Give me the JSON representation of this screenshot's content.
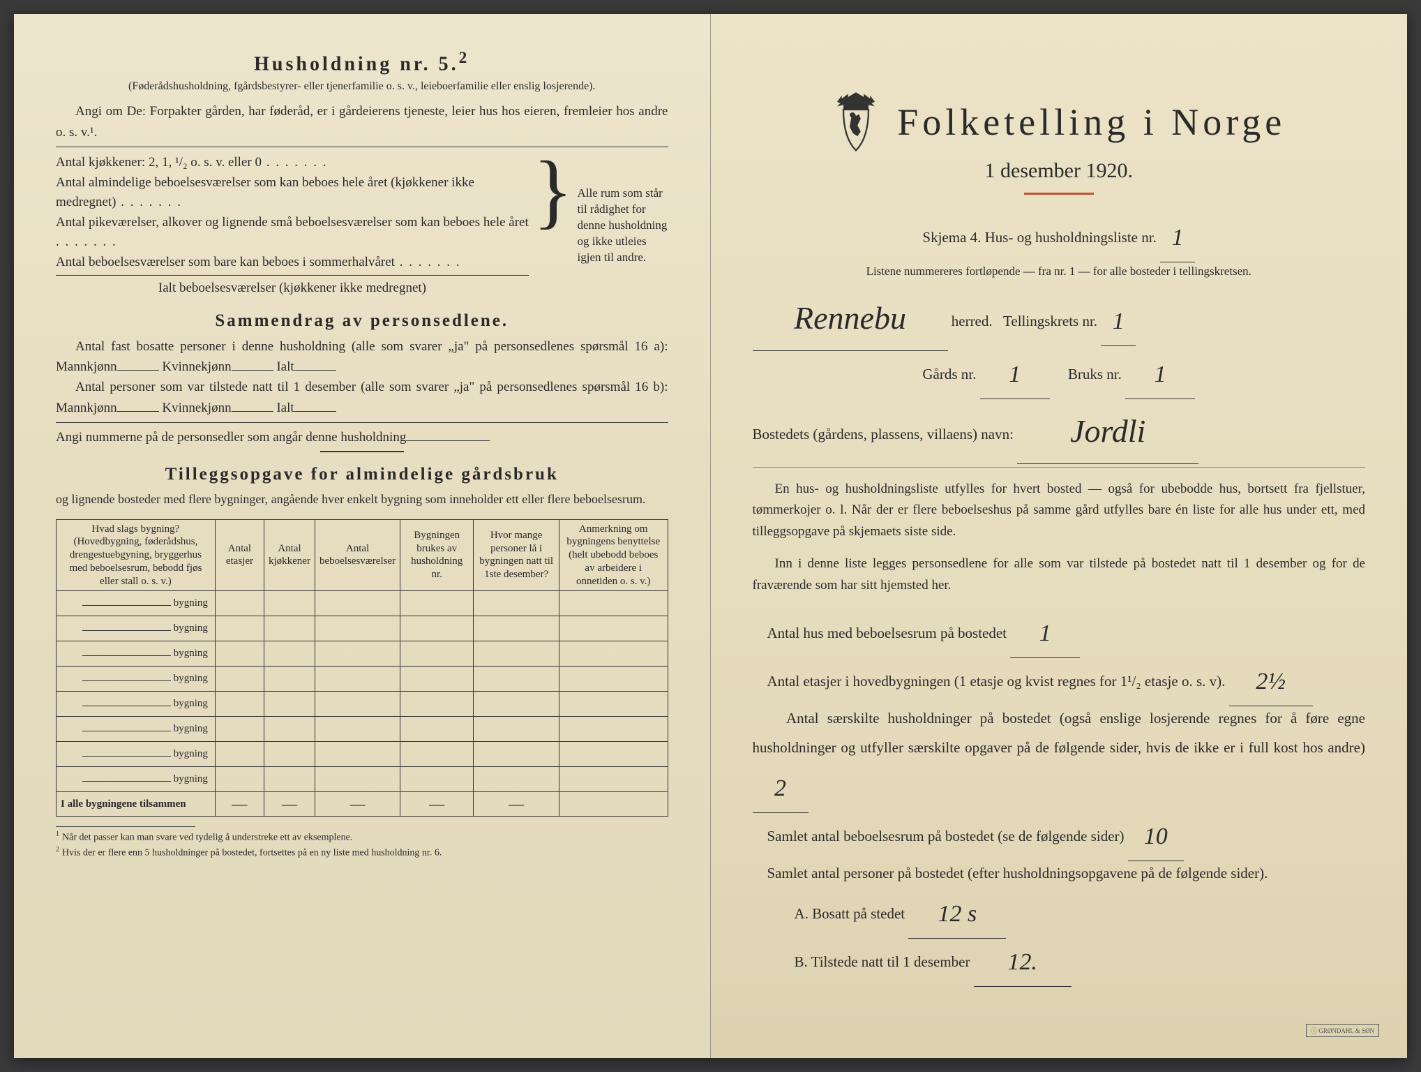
{
  "left": {
    "heading": "Husholdning nr. 5.",
    "heading_sup": "2",
    "subnote": "(Føderådshusholdning, fgårdsbestyrer- eller tjenerfamilie o. s. v., leieboerfamilie eller enslig losjerende).",
    "para1": "Angi om De: Forpakter gården, har føderåd, er i gårdeierens tjeneste, leier hus hos eieren, fremleier hos andre o. s. v.¹.",
    "brace_lines": {
      "l1": "Antal kjøkkener: 2, 1, ¹/₂ o. s. v. eller 0",
      "l2": "Antal almindelige beboelsesværelser som kan beboes hele året (kjøkkener ikke medregnet)",
      "l3": "Antal pikeværelser, alkover og lignende små beboelsesværelser som kan beboes hele året",
      "l4": "Antal beboelsesværelser som bare kan beboes i sommerhalvåret",
      "l5": "Ialt beboelsesværelser (kjøkkener ikke medregnet)"
    },
    "brace_right": "Alle rum som står til rådighet for denne husholdning og ikke utleies igjen til andre.",
    "section2_title": "Sammendrag av personsedlene.",
    "s2_l1a": "Antal fast bosatte personer i denne husholdning (alle som svarer „ja\" på personsedlenes spørsmål 16 a): Mannkjønn",
    "s2_l1b": "Kvinnekjønn",
    "s2_l1c": "Ialt",
    "s2_l2a": "Antal personer som var tilstede natt til 1 desember (alle som svarer „ja\" på personsedlenes spørsmål 16 b): Mannkjønn",
    "s2_l2b": "Kvinnekjønn",
    "s2_l2c": "Ialt",
    "s2_l3": "Angi nummerne på de personsedler som angår denne husholdning",
    "section3_title": "Tilleggsopgave for almindelige gårdsbruk",
    "section3_sub": "og lignende bosteder med flere bygninger, angående hver enkelt bygning som inneholder ett eller flere beboelsesrum.",
    "table": {
      "headers": [
        "Hvad slags bygning?\n(Hovedbygning, føderådshus, drengestuebgyning, bryggerhus med beboelsesrum, bebodd fjøs eller stall o. s. v.)",
        "Antal etasjer",
        "Antal kjøkkener",
        "Antal beboelsesværelser",
        "Bygningen brukes av husholdning nr.",
        "Hvor mange personer lå i bygningen natt til 1ste desember?",
        "Anmerkning om bygningens benyttelse (helt ubebodd beboes av arbeidere i onnetiden o. s. v.)"
      ],
      "row_label": "bygning",
      "row_count": 8,
      "footer_label": "I alle bygningene tilsammen",
      "dash": "—"
    },
    "footnote1": "Når det passer kan man svare ved tydelig å understreke ett av eksemplene.",
    "footnote2": "Hvis der er flere enn 5 husholdninger på bostedet, fortsettes på en ny liste med husholdning nr. 6."
  },
  "right": {
    "title": "Folketelling i Norge",
    "date": "1 desember 1920.",
    "skjema_label": "Skjema 4.  Hus- og husholdningsliste nr.",
    "skjema_value": "1",
    "listene": "Listene nummereres fortløpende — fra nr. 1 — for alle bosteder i tellingskretsen.",
    "herred_value": "Rennebu",
    "herred_label": "herred.",
    "tellingskrets_label": "Tellingskrets nr.",
    "tellingskrets_value": "1",
    "gards_label": "Gårds nr.",
    "gards_value": "1",
    "bruks_label": "Bruks nr.",
    "bruks_value": "1",
    "bosted_label": "Bostedets (gårdens, plassens, villaens) navn:",
    "bosted_value": "Jordli",
    "para1": "En hus- og husholdningsliste utfylles for hvert bosted — også for ubebodde hus, bortsett fra fjellstuer, tømmerkojer o. l.  Når der er flere beboelseshus på samme gård utfylles bare én liste for alle hus under ett, med tilleggsopgave på skjemaets siste side.",
    "para2": "Inn i denne liste legges personsedlene for alle som var tilstede på bostedet natt til 1 desember og for de fraværende som har sitt hjemsted her.",
    "q1_label": "Antal hus med beboelsesrum på bostedet",
    "q1_value": "1",
    "q2_label_a": "Antal etasjer i hovedbygningen (1 etasje og kvist regnes for 1¹/₂ etasje o. s. v).",
    "q2_value": "2½",
    "q3_label": "Antal særskilte husholdninger på bostedet (også enslige losjerende regnes for å føre egne husholdninger og utfyller særskilte opgaver på de følgende sider, hvis de ikke er i full kost hos andre)",
    "q3_value": "2",
    "q4_label": "Samlet antal beboelsesrum på bostedet (se de følgende sider)",
    "q4_value": "10",
    "q5_label": "Samlet antal personer på bostedet (efter husholdningsopgavene på de følgende sider).",
    "qa_label": "A.  Bosatt på stedet",
    "qa_value": "12 s",
    "qb_label": "B.  Tilstede natt til 1 desember",
    "qb_value": "12.",
    "stamp": "ⓘ GRØNDAHL & SØN"
  },
  "colors": {
    "paper": "#e8dfc5",
    "ink": "#2a2a2a",
    "accent": "#c05030"
  }
}
